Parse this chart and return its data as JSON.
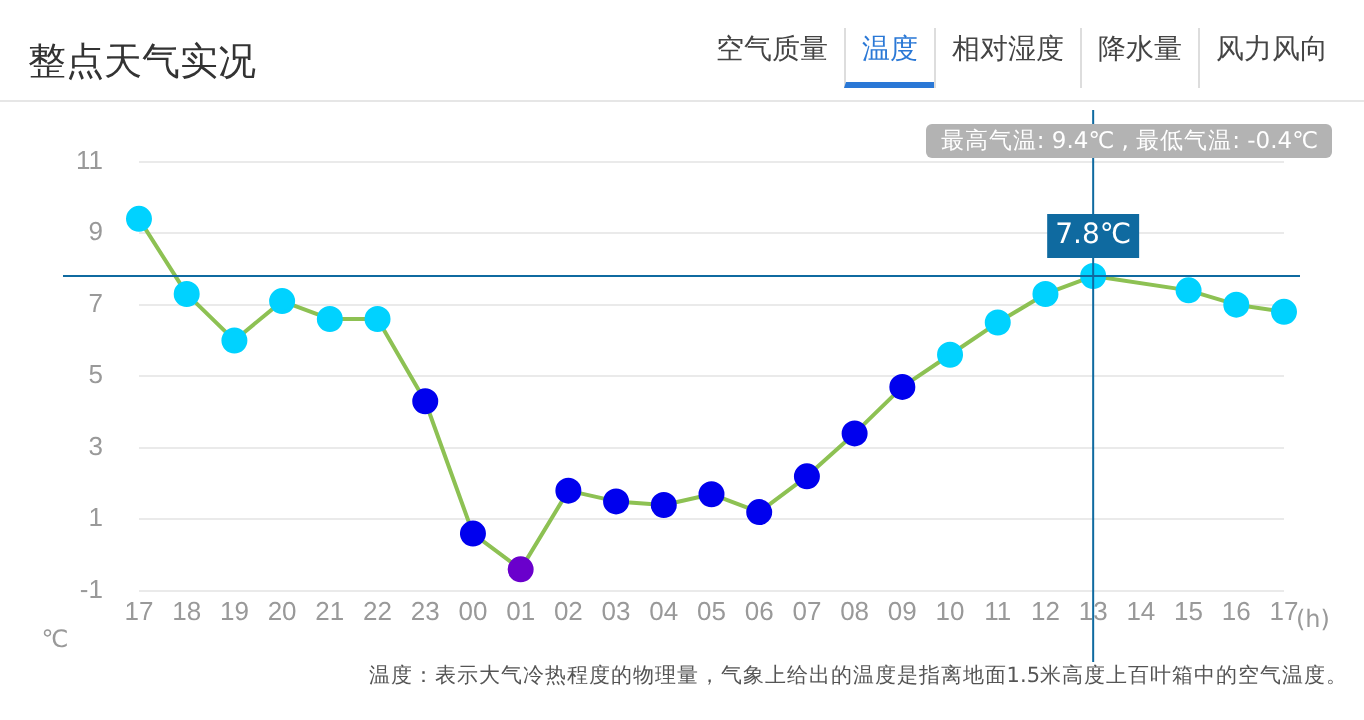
{
  "chart_data": {
    "type": "line",
    "title": "整点天气实况",
    "xlabel": "(h)",
    "ylabel": "℃",
    "categories": [
      "17",
      "18",
      "19",
      "20",
      "21",
      "22",
      "23",
      "00",
      "01",
      "02",
      "03",
      "04",
      "05",
      "06",
      "07",
      "08",
      "09",
      "10",
      "11",
      "12",
      "13",
      "14",
      "15",
      "16",
      "17"
    ],
    "series": [
      {
        "color": "#8dc153",
        "values": [
          9.4,
          7.3,
          6.0,
          7.1,
          6.6,
          6.6,
          4.3,
          0.6,
          -0.4,
          1.8,
          1.5,
          1.4,
          1.7,
          1.2,
          2.2,
          3.4,
          4.7,
          5.6,
          6.5,
          7.3,
          7.8,
          null,
          7.4,
          7.0,
          6.8
        ],
        "colors": [
          "#00d2ff",
          "#00d2ff",
          "#00d2ff",
          "#00d2ff",
          "#00d2ff",
          "#00d2ff",
          "#0000ee",
          "#0000ee",
          "#6a00cc",
          "#0000ee",
          "#0000ee",
          "#0000ee",
          "#0000ee",
          "#0000ee",
          "#0000ee",
          "#0000ee",
          "#0000ee",
          "#00d2ff",
          "#00d2ff",
          "#00d2ff",
          "#00d2ff",
          "#00d2ff",
          "#00d2ff",
          "#00d2ff",
          "#00d2ff"
        ]
      }
    ],
    "ylim": [
      -1,
      11
    ],
    "yticks": [
      -1,
      1,
      3,
      5,
      7,
      9,
      11
    ],
    "grid": "y",
    "legend": false,
    "marker": "circle",
    "line_style": "solid",
    "ref_lines": [
      {
        "axis": "y",
        "value": 7.8,
        "label": "7.8℃",
        "color": "#0f6aa0"
      },
      {
        "axis": "x",
        "value": "13",
        "color": "#0f6aa0"
      }
    ],
    "annotations": [
      "空气质量",
      "温度",
      "相对湿度",
      "降水量",
      "风力风向",
      "最高气温: 9.4℃ , 最低气温: -0.4℃",
      "温度：表示大气冷热程度的物理量，气象上给出的温度是指离地面1.5米高度上百叶箱中的空气温度。"
    ]
  }
}
